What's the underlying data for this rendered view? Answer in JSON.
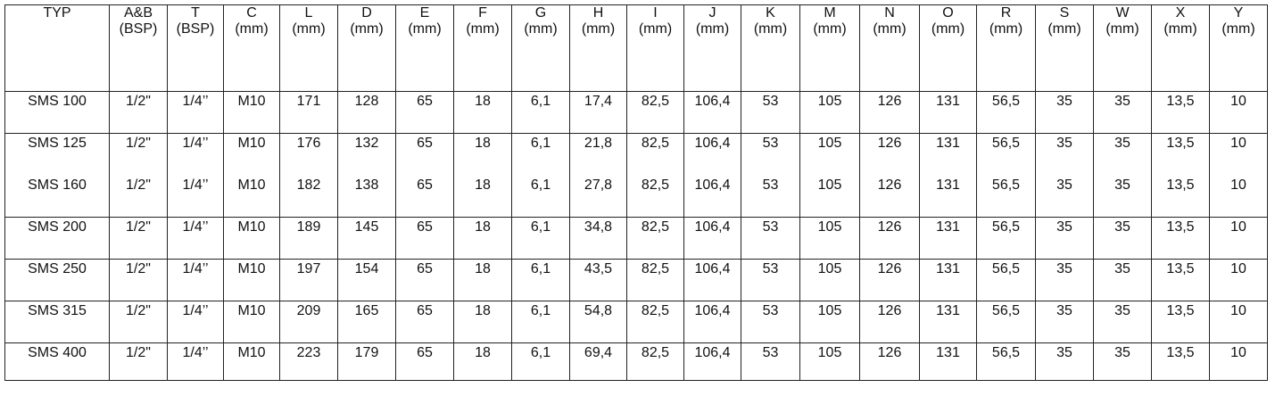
{
  "table": {
    "columns": [
      {
        "name": "TYP"
      },
      {
        "name": "A&B",
        "unit": "(BSP)"
      },
      {
        "name": "T",
        "unit": "(BSP)"
      },
      {
        "name": "C",
        "unit": "(mm)"
      },
      {
        "name": "L",
        "unit": "(mm)"
      },
      {
        "name": "D",
        "unit": "(mm)"
      },
      {
        "name": "E",
        "unit": "(mm)"
      },
      {
        "name": "F",
        "unit": "(mm)"
      },
      {
        "name": "G",
        "unit": "(mm)"
      },
      {
        "name": "H",
        "unit": "(mm)"
      },
      {
        "name": "I",
        "unit": "(mm)"
      },
      {
        "name": "J",
        "unit": "(mm)"
      },
      {
        "name": "K",
        "unit": "(mm)"
      },
      {
        "name": "M",
        "unit": "(mm)"
      },
      {
        "name": "N",
        "unit": "(mm)"
      },
      {
        "name": "O",
        "unit": "(mm)"
      },
      {
        "name": "R",
        "unit": "(mm)"
      },
      {
        "name": "S",
        "unit": "(mm)"
      },
      {
        "name": "W",
        "unit": "(mm)"
      },
      {
        "name": "X",
        "unit": "(mm)"
      },
      {
        "name": "Y",
        "unit": "(mm)"
      }
    ],
    "rows": [
      [
        "SMS 100",
        "1/2\"",
        "1/4’’",
        "M10",
        "171",
        "128",
        "65",
        "18",
        "6,1",
        "17,4",
        "82,5",
        "106,4",
        "53",
        "105",
        "126",
        "131",
        "56,5",
        "35",
        "35",
        "13,5",
        "10"
      ],
      [
        "SMS 125",
        "1/2\"",
        "1/4’’",
        "M10",
        "176",
        "132",
        "65",
        "18",
        "6,1",
        "21,8",
        "82,5",
        "106,4",
        "53",
        "105",
        "126",
        "131",
        "56,5",
        "35",
        "35",
        "13,5",
        "10"
      ],
      [
        "SMS 160",
        "1/2\"",
        "1/4’’",
        "M10",
        "182",
        "138",
        "65",
        "18",
        "6,1",
        "27,8",
        "82,5",
        "106,4",
        "53",
        "105",
        "126",
        "131",
        "56,5",
        "35",
        "35",
        "13,5",
        "10"
      ],
      [
        "SMS 200",
        "1/2\"",
        "1/4’’",
        "M10",
        "189",
        "145",
        "65",
        "18",
        "6,1",
        "34,8",
        "82,5",
        "106,4",
        "53",
        "105",
        "126",
        "131",
        "56,5",
        "35",
        "35",
        "13,5",
        "10"
      ],
      [
        "SMS 250",
        "1/2\"",
        "1/4’’",
        "M10",
        "197",
        "154",
        "65",
        "18",
        "6,1",
        "43,5",
        "82,5",
        "106,4",
        "53",
        "105",
        "126",
        "131",
        "56,5",
        "35",
        "35",
        "13,5",
        "10"
      ],
      [
        "SMS 315",
        "1/2\"",
        "1/4’’",
        "M10",
        "209",
        "165",
        "65",
        "18",
        "6,1",
        "54,8",
        "82,5",
        "106,4",
        "53",
        "105",
        "126",
        "131",
        "56,5",
        "35",
        "35",
        "13,5",
        "10"
      ],
      [
        "SMS 400",
        "1/2\"",
        "1/4’’",
        "M10",
        "223",
        "179",
        "65",
        "18",
        "6,1",
        "69,4",
        "82,5",
        "106,4",
        "53",
        "105",
        "126",
        "131",
        "56,5",
        "35",
        "35",
        "13,5",
        "10"
      ]
    ]
  }
}
